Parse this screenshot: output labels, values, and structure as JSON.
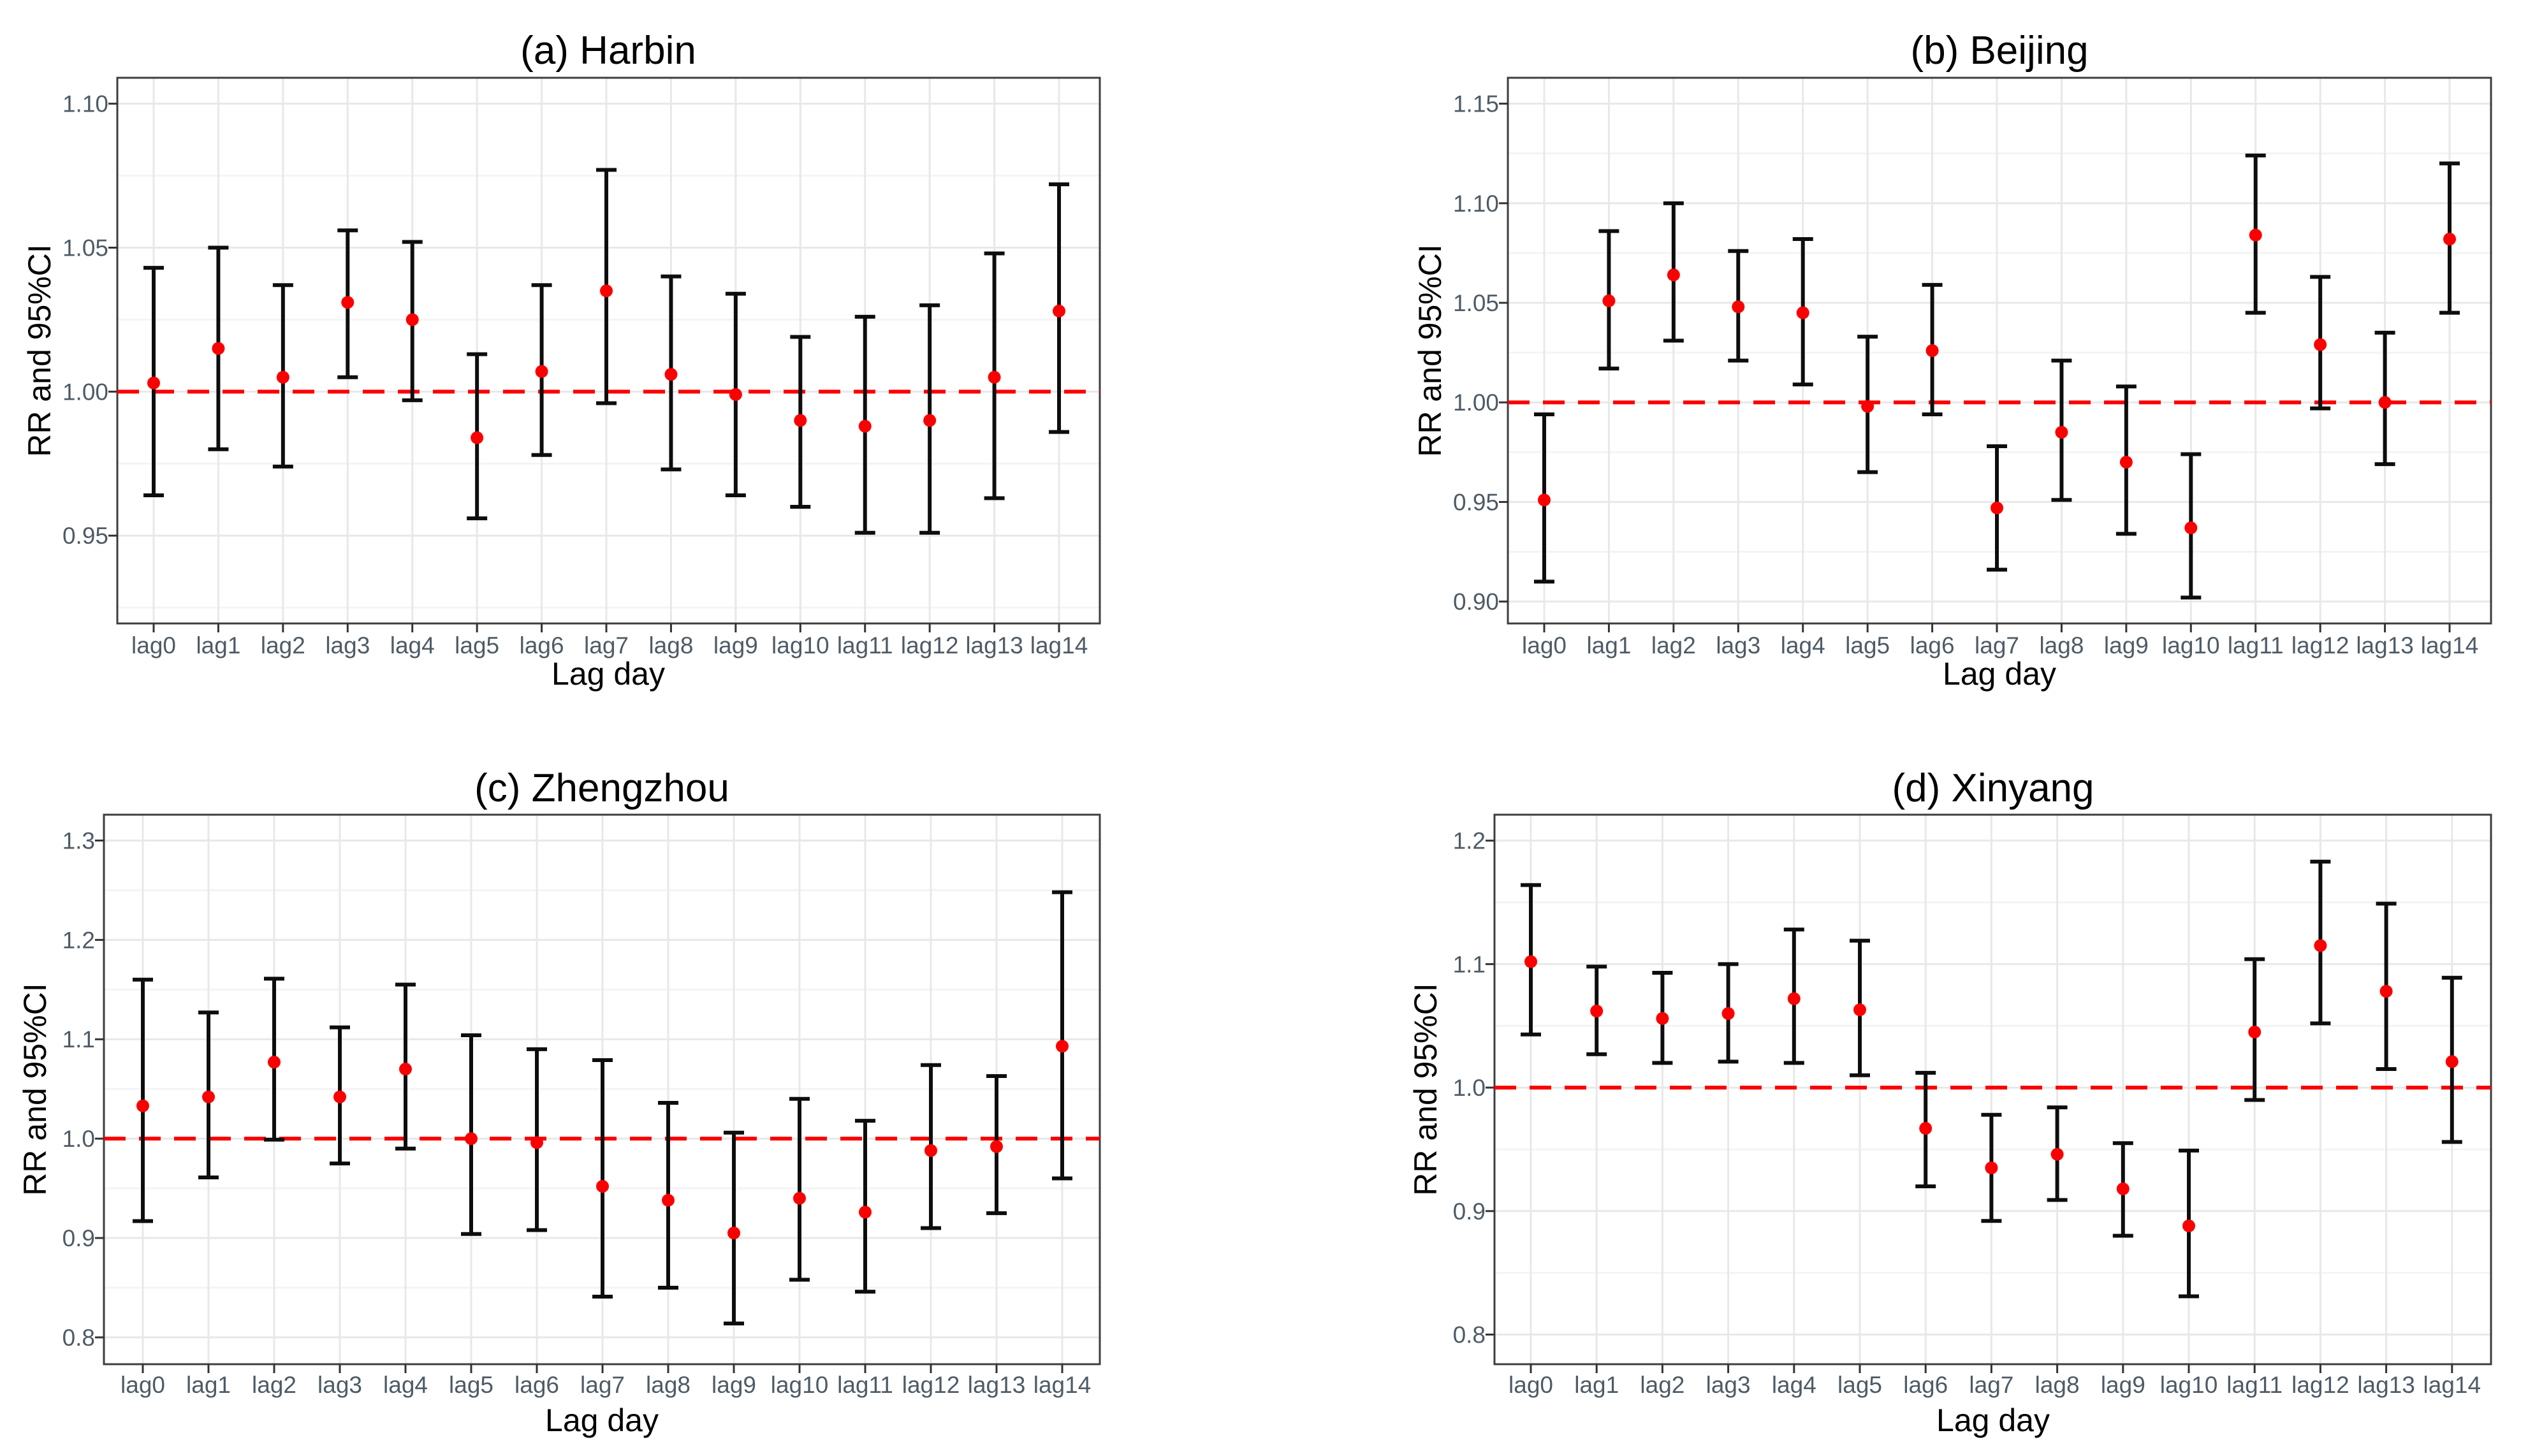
{
  "figure": {
    "background": "#ffffff"
  },
  "colors": {
    "point": "#fb0000",
    "refline": "#fb0000",
    "errorbar": "#0d0d0d",
    "grid_major": "#e8e8e8",
    "grid_minor": "#f4f4f4",
    "border": "#3d3d3d",
    "tick": "#333333",
    "axis_text": "#4e5b66",
    "title_text": "#000000"
  },
  "chart_data": [
    {
      "type": "errorbar",
      "title": "(a) Harbin",
      "xlabel": "Lag day",
      "ylabel": "RR and 95%CI",
      "categories": [
        "lag0",
        "lag1",
        "lag2",
        "lag3",
        "lag4",
        "lag5",
        "lag6",
        "lag7",
        "lag8",
        "lag9",
        "lag10",
        "lag11",
        "lag12",
        "lag13",
        "lag14"
      ],
      "series": [
        {
          "name": "RR",
          "values": [
            1.003,
            1.015,
            1.005,
            1.031,
            1.025,
            0.984,
            1.007,
            1.035,
            1.006,
            0.999,
            0.99,
            0.988,
            0.99,
            1.005,
            1.028
          ]
        },
        {
          "name": "lower95",
          "values": [
            0.964,
            0.98,
            0.974,
            1.005,
            0.997,
            0.956,
            0.978,
            0.996,
            0.973,
            0.964,
            0.96,
            0.951,
            0.951,
            0.963,
            0.986
          ]
        },
        {
          "name": "upper95",
          "values": [
            1.043,
            1.05,
            1.037,
            1.056,
            1.052,
            1.013,
            1.037,
            1.077,
            1.04,
            1.034,
            1.019,
            1.026,
            1.03,
            1.048,
            1.072
          ]
        }
      ],
      "refline": 1.0,
      "ylim": [
        0.9195,
        1.109
      ],
      "yticks": [
        0.95,
        1.0,
        1.05,
        1.1
      ],
      "ytick_labels": [
        "0.95",
        "1.00",
        "1.05",
        "1.10"
      ],
      "grid": true,
      "legend": "none"
    },
    {
      "type": "errorbar",
      "title": "(b) Beijing",
      "xlabel": "Lag day",
      "ylabel": "RR and 95%CI",
      "categories": [
        "lag0",
        "lag1",
        "lag2",
        "lag3",
        "lag4",
        "lag5",
        "lag6",
        "lag7",
        "lag8",
        "lag9",
        "lag10",
        "lag11",
        "lag12",
        "lag13",
        "lag14"
      ],
      "series": [
        {
          "name": "RR",
          "values": [
            0.951,
            1.051,
            1.064,
            1.048,
            1.045,
            0.998,
            1.026,
            0.947,
            0.985,
            0.97,
            0.937,
            1.084,
            1.029,
            1.0,
            1.082
          ]
        },
        {
          "name": "lower95",
          "values": [
            0.91,
            1.017,
            1.031,
            1.021,
            1.009,
            0.965,
            0.994,
            0.916,
            0.951,
            0.934,
            0.902,
            1.045,
            0.997,
            0.969,
            1.045
          ]
        },
        {
          "name": "upper95",
          "values": [
            0.994,
            1.086,
            1.1,
            1.076,
            1.082,
            1.033,
            1.059,
            0.978,
            1.021,
            1.008,
            0.974,
            1.124,
            1.063,
            1.035,
            1.12
          ]
        }
      ],
      "refline": 1.0,
      "ylim": [
        0.889,
        1.163
      ],
      "yticks": [
        0.9,
        0.95,
        1.0,
        1.05,
        1.1,
        1.15
      ],
      "ytick_labels": [
        "0.90",
        "0.95",
        "1.00",
        "1.05",
        "1.10",
        "1.15"
      ],
      "grid": true,
      "legend": "none"
    },
    {
      "type": "errorbar",
      "title": "(c) Zhengzhou",
      "xlabel": "Lag day",
      "ylabel": "RR and 95%CI",
      "categories": [
        "lag0",
        "lag1",
        "lag2",
        "lag3",
        "lag4",
        "lag5",
        "lag6",
        "lag7",
        "lag8",
        "lag9",
        "lag10",
        "lag11",
        "lag12",
        "lag13",
        "lag14"
      ],
      "series": [
        {
          "name": "RR",
          "values": [
            1.033,
            1.042,
            1.077,
            1.042,
            1.07,
            1.0,
            0.996,
            0.952,
            0.938,
            0.905,
            0.94,
            0.926,
            0.988,
            0.992,
            1.093
          ]
        },
        {
          "name": "lower95",
          "values": [
            0.917,
            0.961,
            0.999,
            0.975,
            0.99,
            0.904,
            0.908,
            0.841,
            0.85,
            0.814,
            0.858,
            0.846,
            0.91,
            0.925,
            0.96
          ]
        },
        {
          "name": "upper95",
          "values": [
            1.16,
            1.127,
            1.161,
            1.112,
            1.155,
            1.104,
            1.09,
            1.079,
            1.036,
            1.006,
            1.04,
            1.018,
            1.074,
            1.063,
            1.248
          ]
        }
      ],
      "refline": 1.0,
      "ylim": [
        0.773,
        1.326
      ],
      "yticks": [
        0.8,
        0.9,
        1.0,
        1.1,
        1.2,
        1.3
      ],
      "ytick_labels": [
        "0.8",
        "0.9",
        "1.0",
        "1.1",
        "1.2",
        "1.3"
      ],
      "grid": true,
      "legend": "none"
    },
    {
      "type": "errorbar",
      "title": "(d) Xinyang",
      "xlabel": "Lag day",
      "ylabel": "RR and 95%CI",
      "categories": [
        "lag0",
        "lag1",
        "lag2",
        "lag3",
        "lag4",
        "lag5",
        "lag6",
        "lag7",
        "lag8",
        "lag9",
        "lag10",
        "lag11",
        "lag12",
        "lag13",
        "lag14"
      ],
      "series": [
        {
          "name": "RR",
          "values": [
            1.102,
            1.062,
            1.056,
            1.06,
            1.072,
            1.063,
            0.967,
            0.935,
            0.946,
            0.918,
            0.888,
            1.045,
            1.115,
            1.078,
            1.021
          ]
        },
        {
          "name": "lower95",
          "values": [
            1.043,
            1.027,
            1.02,
            1.021,
            1.02,
            1.01,
            0.92,
            0.892,
            0.909,
            0.88,
            0.831,
            0.99,
            1.052,
            1.015,
            0.956
          ]
        },
        {
          "name": "upper95",
          "values": [
            1.164,
            1.098,
            1.093,
            1.1,
            1.128,
            1.119,
            1.012,
            0.978,
            0.984,
            0.955,
            0.949,
            1.104,
            1.183,
            1.149,
            1.089
          ]
        }
      ],
      "refline": 1.0,
      "ylim": [
        0.776,
        1.221
      ],
      "yticks": [
        0.8,
        0.9,
        1.0,
        1.1,
        1.2
      ],
      "ytick_labels": [
        "0.8",
        "0.9",
        "1.0",
        "1.1",
        "1.2"
      ],
      "grid": true,
      "legend": "none"
    }
  ]
}
